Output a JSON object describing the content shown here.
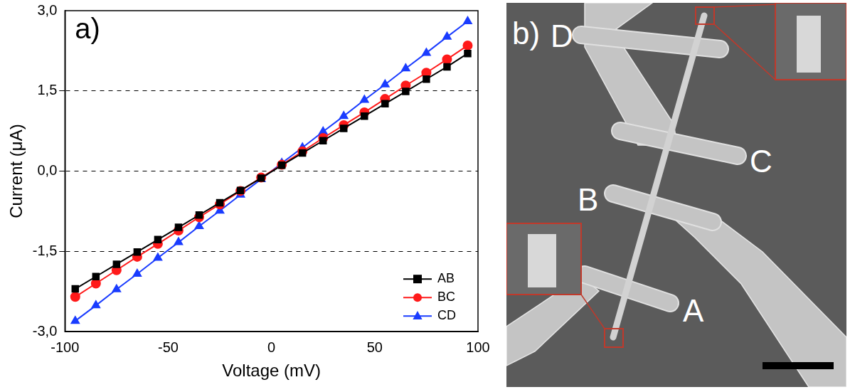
{
  "chart_data": {
    "type": "line",
    "annotations": [
      "a)"
    ],
    "x_label": "Voltage (mV)",
    "y_label": "Current (μA)",
    "x": [
      -95,
      -85,
      -75,
      -65,
      -55,
      -45,
      -35,
      -25,
      -15,
      -5,
      5,
      15,
      25,
      35,
      45,
      55,
      65,
      75,
      85,
      95
    ],
    "series": [
      {
        "name": "AB",
        "color": "#000000",
        "marker": "square",
        "values": [
          -2.2,
          -1.97,
          -1.74,
          -1.51,
          -1.28,
          -1.05,
          -0.82,
          -0.59,
          -0.36,
          -0.13,
          0.11,
          0.34,
          0.57,
          0.8,
          1.03,
          1.26,
          1.49,
          1.72,
          1.95,
          2.2
        ]
      },
      {
        "name": "BC",
        "color": "#ff1a1a",
        "marker": "circle",
        "values": [
          -2.35,
          -2.1,
          -1.85,
          -1.6,
          -1.36,
          -1.11,
          -0.86,
          -0.62,
          -0.37,
          -0.12,
          0.12,
          0.37,
          0.62,
          0.86,
          1.1,
          1.35,
          1.6,
          1.84,
          2.09,
          2.35
        ]
      },
      {
        "name": "CD",
        "color": "#1a3cff",
        "marker": "triangle",
        "values": [
          -2.8,
          -2.51,
          -2.21,
          -1.92,
          -1.62,
          -1.33,
          -1.03,
          -0.74,
          -0.44,
          -0.15,
          0.15,
          0.44,
          0.74,
          1.03,
          1.33,
          1.62,
          1.92,
          2.21,
          2.51,
          2.8
        ]
      }
    ],
    "xlim": [
      -100,
      100
    ],
    "xticks": [
      -100,
      -50,
      0,
      50,
      100
    ],
    "ylim": [
      -3,
      3
    ],
    "yticks": [
      {
        "value": -3,
        "label": "-3,0"
      },
      {
        "value": -1.5,
        "label": "-1,5"
      },
      {
        "value": 0,
        "label": "0,0"
      },
      {
        "value": 1.5,
        "label": "1,5"
      },
      {
        "value": 3,
        "label": "3,0"
      }
    ],
    "grid": true,
    "legend": "lower right"
  },
  "image": {
    "label": "b)",
    "contacts": [
      "A",
      "B",
      "C",
      "D"
    ]
  }
}
